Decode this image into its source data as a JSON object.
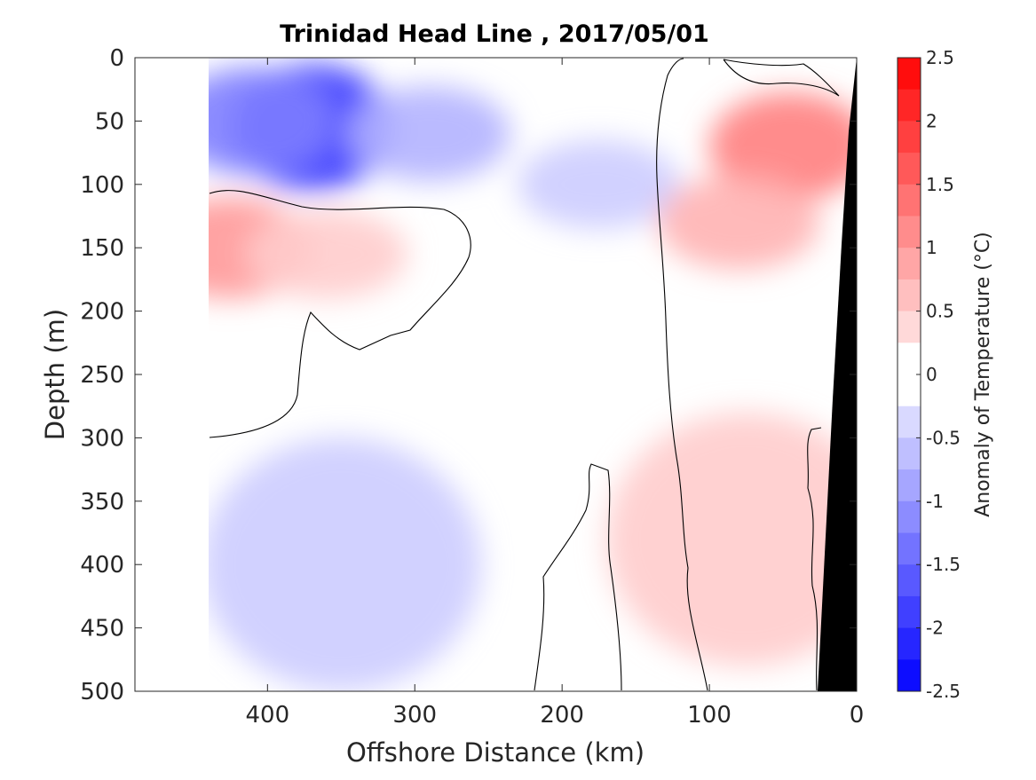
{
  "chart_data": {
    "type": "heatmap",
    "title": "Trinidad Head Line , 2017/05/01",
    "xlabel": "Offshore Distance (km)",
    "ylabel": "Depth (m)",
    "xlim": [
      490,
      0
    ],
    "ylim": [
      500,
      0
    ],
    "x_reversed": true,
    "y_reversed": true,
    "xticks": [
      400,
      300,
      200,
      100,
      0
    ],
    "yticks": [
      0,
      50,
      100,
      150,
      200,
      250,
      300,
      350,
      400,
      450,
      500
    ],
    "colorbar": {
      "label": "Anomaly of Temperature (°C)",
      "range": [
        -2.5,
        2.5
      ],
      "step": 0.25,
      "ticks": [
        2.5,
        2,
        1.5,
        1,
        0.5,
        0,
        -0.5,
        -1,
        -1.5,
        -2,
        -2.5
      ],
      "tick_labels": [
        "2.5",
        "2",
        "1.5",
        "1",
        "0.5",
        "0",
        "-0.5",
        "-1",
        "-1.5",
        "-2",
        "-2.5"
      ]
    },
    "colors": {
      "warm": "#ff0000",
      "cold": "#0000ff",
      "neutral": "#ffffff",
      "land": "#000000",
      "contour": "#000000"
    },
    "data_extent": {
      "x_max_km": 440,
      "x_min_km": 0
    },
    "features": [
      {
        "name": "surface cold core",
        "distance_km": 370,
        "depth_m": 55,
        "anomaly_c": -2.0
      },
      {
        "name": "cold lobe",
        "distance_km": 410,
        "depth_m": 50,
        "anomaly_c": -1.25
      },
      {
        "name": "cold tongue",
        "distance_km": 290,
        "depth_m": 60,
        "anomaly_c": -0.75
      },
      {
        "name": "weak cold patch",
        "distance_km": 175,
        "depth_m": 100,
        "anomaly_c": -0.5
      },
      {
        "name": "offshore warm core",
        "distance_km": 425,
        "depth_m": 150,
        "anomaly_c": 1.0
      },
      {
        "name": "small warm patch",
        "distance_km": 360,
        "depth_m": 155,
        "anomaly_c": 0.5
      },
      {
        "name": "nearshore warm core",
        "distance_km": 45,
        "depth_m": 70,
        "anomaly_c": 1.25
      },
      {
        "name": "nearshore warm band",
        "distance_km": 80,
        "depth_m": 130,
        "anomaly_c": 0.75
      },
      {
        "name": "deep warm band",
        "distance_km": 75,
        "depth_m": 380,
        "anomaly_c": 0.5
      },
      {
        "name": "deep cold patch",
        "distance_km": 350,
        "depth_m": 400,
        "anomaly_c": -0.5
      }
    ],
    "grid": false,
    "legend": "colorbar-right"
  }
}
